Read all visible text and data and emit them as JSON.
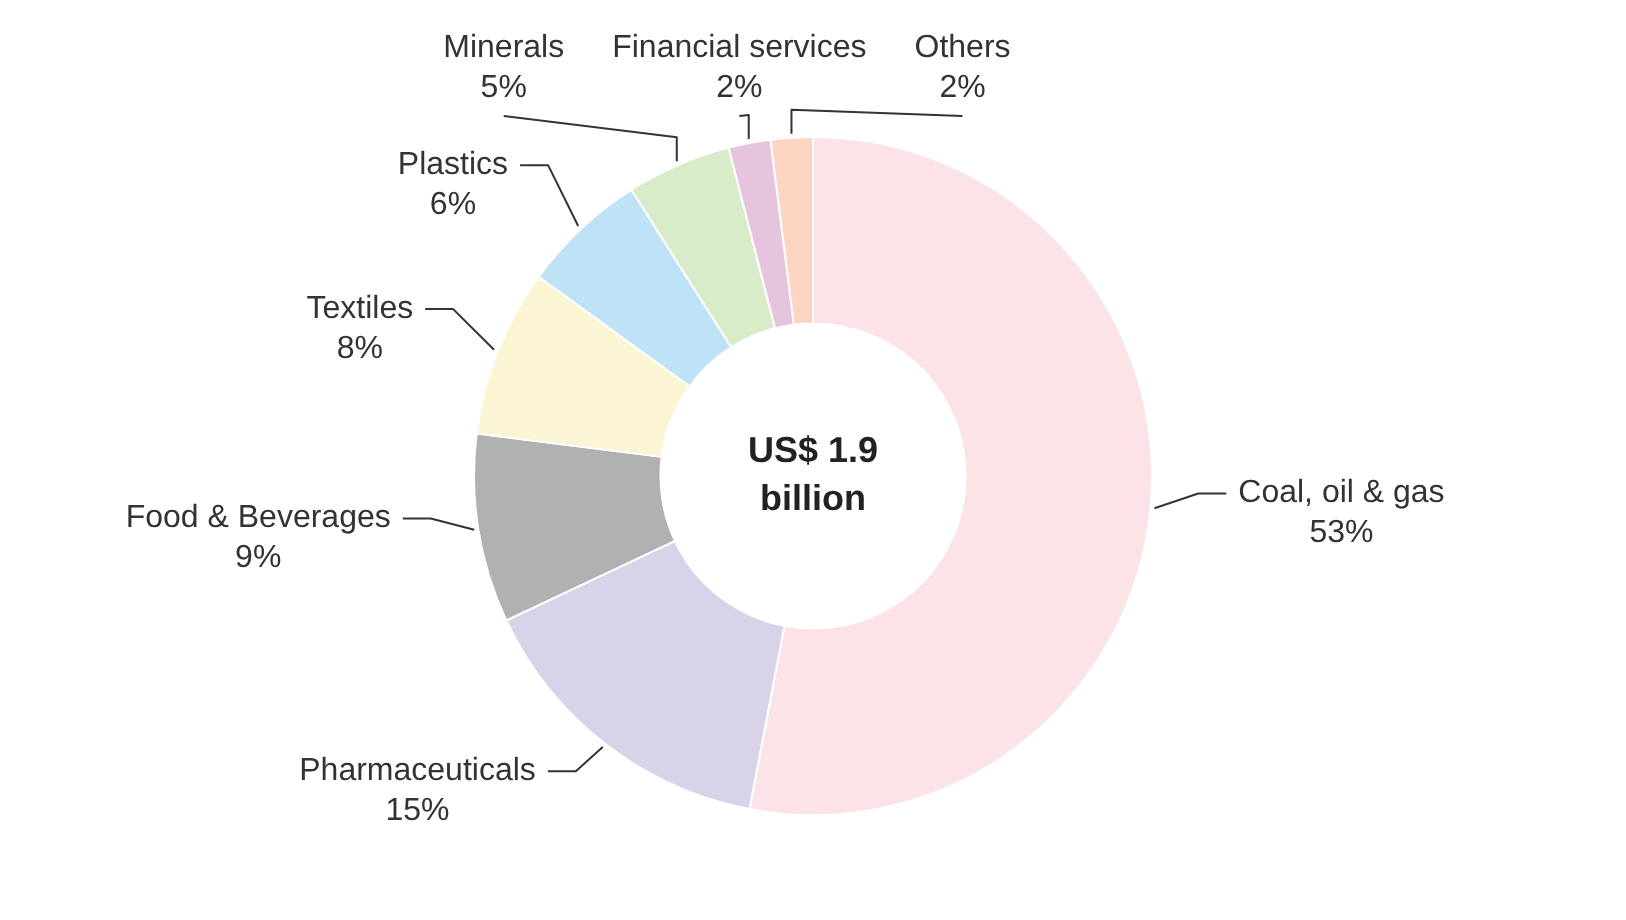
{
  "chart_data": {
    "type": "donut",
    "categories": [
      "Coal, oil & gas",
      "Pharmaceuticals",
      "Food & Beverages",
      "Textiles",
      "Plastics",
      "Minerals",
      "Financial services",
      "Others"
    ],
    "values": [
      53,
      15,
      9,
      8,
      6,
      5,
      2,
      2
    ],
    "value_labels": [
      "53%",
      "15%",
      "9%",
      "8%",
      "6%",
      "5%",
      "2%",
      "2%"
    ],
    "colors": [
      "#fbe3e8",
      "#d9d3ea",
      "#b0b1b3",
      "#fcf5d4",
      "#bfe3f6",
      "#d8ecc9",
      "#e6c4de",
      "#fdd5c3"
    ],
    "annotations": [
      "US$ 1.9 billion"
    ],
    "legend": false
  }
}
